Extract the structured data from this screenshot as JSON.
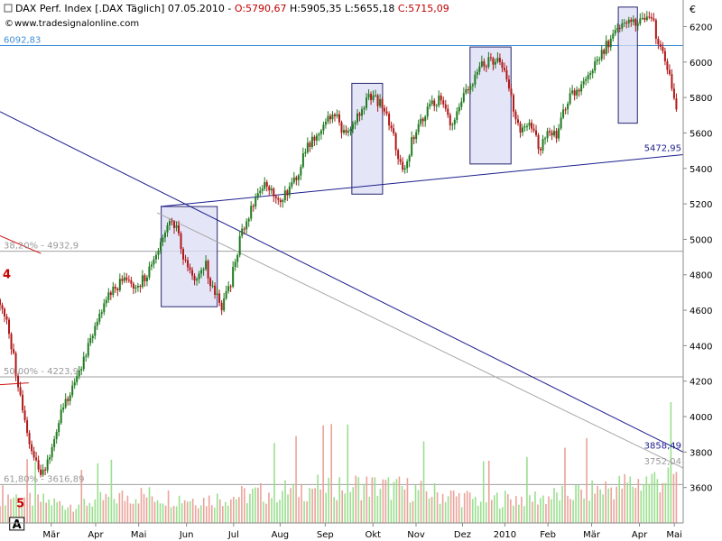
{
  "header": {
    "prefix": "DAX Perf. Index [.DAX Täglich] 07.05.2010 - ",
    "open": "O:5790,67",
    "high_low": " H:5905,35 L:5655,18 ",
    "close": "C:5715,09",
    "site": "www.tradesignalonline.com"
  },
  "colors": {
    "up": "#1f7a1f",
    "down": "#b01818",
    "trend_navy": "#1b1e8c",
    "trend_gray": "#a8a8a8",
    "blue_level": "#3d8fd6",
    "box_fill": "#dcdcf6",
    "box_stroke": "#26266e",
    "vol_up": "#9adf8e",
    "vol_down": "#eaa39a"
  },
  "chart_data": {
    "type": "candlestick",
    "currency_label": "€",
    "ylim": [
      3400,
      6350
    ],
    "y_ticks": [
      {
        "label": "6200",
        "value": 6200
      },
      {
        "label": "6000",
        "value": 6000
      },
      {
        "label": "5800",
        "value": 5800
      },
      {
        "label": "5600",
        "value": 5600
      },
      {
        "label": "5400",
        "value": 5400
      },
      {
        "label": "5200",
        "value": 5200
      },
      {
        "label": "5000",
        "value": 5000
      },
      {
        "label": "4800",
        "value": 4800
      },
      {
        "label": "4600",
        "value": 4600
      },
      {
        "label": "4400",
        "value": 4400
      },
      {
        "label": "4200",
        "value": 4200
      },
      {
        "label": "4000",
        "value": 4000
      },
      {
        "label": "3800",
        "value": 3800
      },
      {
        "label": "3600",
        "value": 3600
      }
    ],
    "x_ticks": [
      {
        "label": "Mär",
        "t": 0.075
      },
      {
        "label": "Apr",
        "t": 0.14
      },
      {
        "label": "Mai",
        "t": 0.203
      },
      {
        "label": "Jun",
        "t": 0.273
      },
      {
        "label": "Jul",
        "t": 0.342
      },
      {
        "label": "Aug",
        "t": 0.41
      },
      {
        "label": "Sep",
        "t": 0.476
      },
      {
        "label": "Okt",
        "t": 0.546
      },
      {
        "label": "Nov",
        "t": 0.609
      },
      {
        "label": "Dez",
        "t": 0.677
      },
      {
        "label": "2010",
        "t": 0.739
      },
      {
        "label": "Feb",
        "t": 0.802
      },
      {
        "label": "Mär",
        "t": 0.866
      },
      {
        "label": "Apr",
        "t": 0.936
      },
      {
        "label": "Mai",
        "t": 0.987
      }
    ],
    "price_path": [
      [
        0.0,
        4660
      ],
      [
        0.01,
        4560
      ],
      [
        0.022,
        4280
      ],
      [
        0.034,
        4000
      ],
      [
        0.048,
        3780
      ],
      [
        0.06,
        3650
      ],
      [
        0.072,
        3770
      ],
      [
        0.088,
        4000
      ],
      [
        0.105,
        4150
      ],
      [
        0.12,
        4290
      ],
      [
        0.138,
        4500
      ],
      [
        0.16,
        4700
      ],
      [
        0.18,
        4770
      ],
      [
        0.2,
        4740
      ],
      [
        0.215,
        4800
      ],
      [
        0.232,
        4950
      ],
      [
        0.248,
        5120
      ],
      [
        0.258,
        5080
      ],
      [
        0.27,
        4880
      ],
      [
        0.285,
        4780
      ],
      [
        0.3,
        4870
      ],
      [
        0.312,
        4710
      ],
      [
        0.325,
        4610
      ],
      [
        0.338,
        4760
      ],
      [
        0.352,
        5020
      ],
      [
        0.37,
        5200
      ],
      [
        0.39,
        5320
      ],
      [
        0.41,
        5230
      ],
      [
        0.43,
        5320
      ],
      [
        0.45,
        5520
      ],
      [
        0.47,
        5640
      ],
      [
        0.49,
        5720
      ],
      [
        0.505,
        5580
      ],
      [
        0.52,
        5680
      ],
      [
        0.54,
        5810
      ],
      [
        0.56,
        5760
      ],
      [
        0.575,
        5600
      ],
      [
        0.59,
        5370
      ],
      [
        0.605,
        5580
      ],
      [
        0.625,
        5740
      ],
      [
        0.645,
        5800
      ],
      [
        0.66,
        5650
      ],
      [
        0.678,
        5790
      ],
      [
        0.7,
        5960
      ],
      [
        0.72,
        6020
      ],
      [
        0.735,
        5980
      ],
      [
        0.748,
        5800
      ],
      [
        0.76,
        5620
      ],
      [
        0.775,
        5660
      ],
      [
        0.79,
        5510
      ],
      [
        0.8,
        5620
      ],
      [
        0.815,
        5580
      ],
      [
        0.83,
        5780
      ],
      [
        0.85,
        5870
      ],
      [
        0.872,
        6000
      ],
      [
        0.895,
        6140
      ],
      [
        0.92,
        6250
      ],
      [
        0.94,
        6220
      ],
      [
        0.955,
        6240
      ],
      [
        0.962,
        6130
      ],
      [
        0.97,
        6050
      ],
      [
        0.978,
        5950
      ],
      [
        0.985,
        5800
      ],
      [
        0.99,
        5715
      ]
    ],
    "volume_profile": [
      0.55,
      0.35,
      0.55,
      0.45,
      0.6,
      0.75,
      0.65,
      0.45,
      0.5,
      0.7,
      0.95
    ],
    "levels": [
      {
        "label": "6092,83",
        "value": 6092.83,
        "kind": "blue"
      },
      {
        "label": "38,20% - 4932,9",
        "value": 4932.9,
        "kind": "fib"
      },
      {
        "label": "50,00% - 4223,9",
        "value": 4223.9,
        "kind": "fib"
      },
      {
        "label": "61,80% - 3616,89",
        "value": 3616.89,
        "kind": "fib"
      }
    ],
    "trendlines": [
      {
        "label": "5472,95",
        "kind": "navy",
        "from": [
          0.235,
          5185
        ],
        "to": [
          1.0,
          5478
        ]
      },
      {
        "label": "3858,49",
        "kind": "navy",
        "from": [
          0.0,
          5720
        ],
        "to": [
          1.0,
          3800
        ]
      },
      {
        "label": "3752,04",
        "kind": "gray",
        "from": [
          0.23,
          5150
        ],
        "to": [
          1.0,
          3710
        ]
      },
      {
        "label": "",
        "kind": "red",
        "from": [
          0.0,
          5020
        ],
        "to": [
          0.06,
          4920
        ]
      },
      {
        "label": "",
        "kind": "red",
        "from": [
          0.0,
          4180
        ],
        "to": [
          0.042,
          4190
        ]
      }
    ],
    "boxes": [
      {
        "t1": 0.236,
        "t2": 0.318,
        "top": 5185,
        "bottom": 4620
      },
      {
        "t1": 0.515,
        "t2": 0.56,
        "top": 5880,
        "bottom": 5255
      },
      {
        "t1": 0.688,
        "t2": 0.748,
        "top": 6085,
        "bottom": 5425
      },
      {
        "t1": 0.905,
        "t2": 0.933,
        "top": 6310,
        "bottom": 5655
      }
    ],
    "wave_labels": [
      {
        "label": "4",
        "t": 0.01,
        "value": 4780
      },
      {
        "label": "5",
        "t": 0.03,
        "value": 3490
      },
      {
        "label": "A",
        "t": 0.03,
        "value": 3370
      }
    ]
  }
}
